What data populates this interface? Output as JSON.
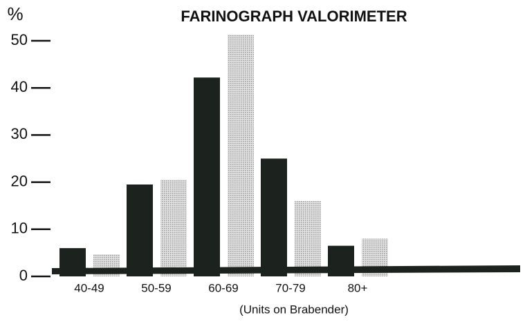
{
  "chart_data": {
    "type": "bar",
    "title": "FARINOGRAPH VALORIMETER",
    "y_label": "%",
    "x_label": "(Units on Brabender)",
    "categories": [
      "40-49",
      "50-59",
      "60-69",
      "70-79",
      "80+"
    ],
    "series": [
      {
        "color": "#1c231e",
        "values": [
          6,
          19.5,
          42.2,
          25,
          6.5
        ]
      },
      {
        "color": "#c9c9c9",
        "values": [
          4.7,
          20.5,
          51.3,
          16,
          8
        ]
      }
    ],
    "ylim": [
      0,
      50
    ],
    "yticks": [
      0,
      10,
      20,
      30,
      40,
      50
    ]
  }
}
